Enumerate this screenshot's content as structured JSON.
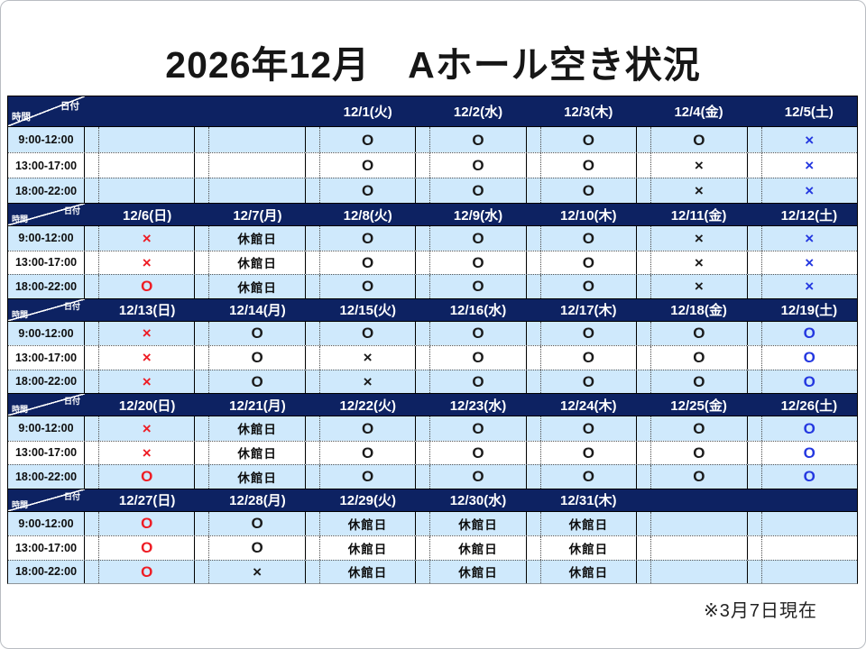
{
  "title": "2026年12月　Aホール空き状況",
  "footer_note": "※3月7日現在",
  "colors": {
    "header_navy": "#0d2262",
    "row_light_blue": "#cfe9fc",
    "row_white": "#ffffff",
    "symbol_weekday_black": "#1a1a1a",
    "symbol_sunday_red": "#ee1c24",
    "symbol_saturday_blue": "#2438e0"
  },
  "table": {
    "corner": {
      "date_label": "日付",
      "time_label": "時間"
    },
    "time_slots": [
      "9:00-12:00",
      "13:00-17:00",
      "18:00-22:00"
    ],
    "weeks": [
      {
        "days": [
          {
            "date": "",
            "color": "black",
            "cells": [
              "",
              "",
              ""
            ]
          },
          {
            "date": "",
            "color": "black",
            "cells": [
              "",
              "",
              ""
            ]
          },
          {
            "date": "12/1(火)",
            "color": "black",
            "cells": [
              "O",
              "O",
              "O"
            ]
          },
          {
            "date": "12/2(水)",
            "color": "black",
            "cells": [
              "O",
              "O",
              "O"
            ]
          },
          {
            "date": "12/3(木)",
            "color": "black",
            "cells": [
              "O",
              "O",
              "O"
            ]
          },
          {
            "date": "12/4(金)",
            "color": "black",
            "cells": [
              "O",
              "×",
              "×"
            ]
          },
          {
            "date": "12/5(土)",
            "color": "blue",
            "cells": [
              "×",
              "×",
              "×"
            ]
          }
        ]
      },
      {
        "days": [
          {
            "date": "12/6(日)",
            "color": "red",
            "cells": [
              "×",
              "×",
              "O"
            ]
          },
          {
            "date": "12/7(月)",
            "color": "black",
            "cells": [
              "休館日",
              "休館日",
              "休館日"
            ]
          },
          {
            "date": "12/8(火)",
            "color": "black",
            "cells": [
              "O",
              "O",
              "O"
            ]
          },
          {
            "date": "12/9(水)",
            "color": "black",
            "cells": [
              "O",
              "O",
              "O"
            ]
          },
          {
            "date": "12/10(木)",
            "color": "black",
            "cells": [
              "O",
              "O",
              "O"
            ]
          },
          {
            "date": "12/11(金)",
            "color": "black",
            "cells": [
              "×",
              "×",
              "×"
            ]
          },
          {
            "date": "12/12(土)",
            "color": "blue",
            "cells": [
              "×",
              "×",
              "×"
            ]
          }
        ]
      },
      {
        "days": [
          {
            "date": "12/13(日)",
            "color": "red",
            "cells": [
              "×",
              "×",
              "×"
            ]
          },
          {
            "date": "12/14(月)",
            "color": "black",
            "cells": [
              "O",
              "O",
              "O"
            ]
          },
          {
            "date": "12/15(火)",
            "color": "black",
            "cells": [
              "O",
              "×",
              "×"
            ]
          },
          {
            "date": "12/16(水)",
            "color": "black",
            "cells": [
              "O",
              "O",
              "O"
            ]
          },
          {
            "date": "12/17(木)",
            "color": "black",
            "cells": [
              "O",
              "O",
              "O"
            ]
          },
          {
            "date": "12/18(金)",
            "color": "black",
            "cells": [
              "O",
              "O",
              "O"
            ]
          },
          {
            "date": "12/19(土)",
            "color": "blue",
            "cells": [
              "O",
              "O",
              "O"
            ]
          }
        ]
      },
      {
        "days": [
          {
            "date": "12/20(日)",
            "color": "red",
            "cells": [
              "×",
              "×",
              "O"
            ]
          },
          {
            "date": "12/21(月)",
            "color": "black",
            "cells": [
              "休館日",
              "休館日",
              "休館日"
            ]
          },
          {
            "date": "12/22(火)",
            "color": "black",
            "cells": [
              "O",
              "O",
              "O"
            ]
          },
          {
            "date": "12/23(水)",
            "color": "black",
            "cells": [
              "O",
              "O",
              "O"
            ]
          },
          {
            "date": "12/24(木)",
            "color": "black",
            "cells": [
              "O",
              "O",
              "O"
            ]
          },
          {
            "date": "12/25(金)",
            "color": "black",
            "cells": [
              "O",
              "O",
              "O"
            ]
          },
          {
            "date": "12/26(土)",
            "color": "blue",
            "cells": [
              "O",
              "O",
              "O"
            ]
          }
        ]
      },
      {
        "days": [
          {
            "date": "12/27(日)",
            "color": "red",
            "cells": [
              "O",
              "O",
              "O"
            ]
          },
          {
            "date": "12/28(月)",
            "color": "black",
            "cells": [
              "O",
              "O",
              "×"
            ]
          },
          {
            "date": "12/29(火)",
            "color": "black",
            "cells": [
              "休館日",
              "休館日",
              "休館日"
            ]
          },
          {
            "date": "12/30(水)",
            "color": "black",
            "cells": [
              "休館日",
              "休館日",
              "休館日"
            ]
          },
          {
            "date": "12/31(木)",
            "color": "black",
            "cells": [
              "休館日",
              "休館日",
              "休館日"
            ]
          },
          {
            "date": "",
            "color": "black",
            "cells": [
              "",
              "",
              ""
            ]
          },
          {
            "date": "",
            "color": "black",
            "cells": [
              "",
              "",
              ""
            ]
          }
        ]
      }
    ]
  }
}
